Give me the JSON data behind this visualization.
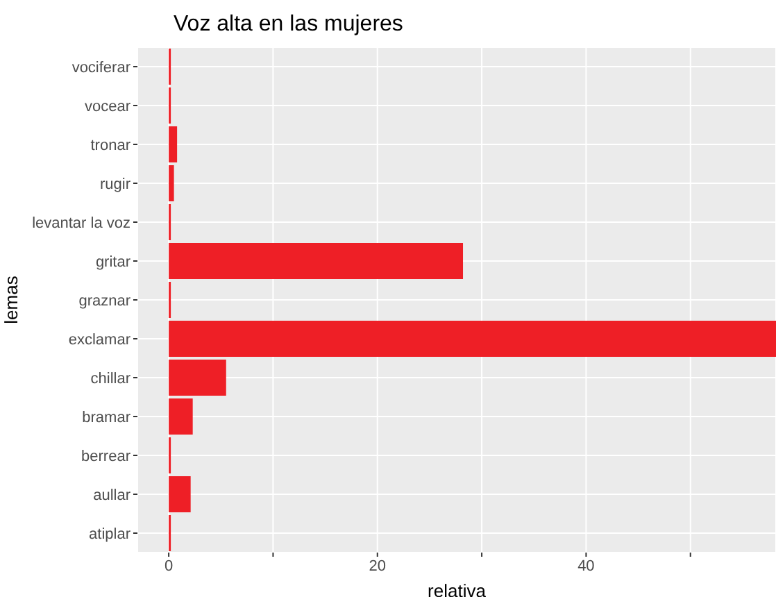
{
  "chart_data": {
    "type": "bar",
    "orientation": "horizontal",
    "title": "Voz alta en las mujeres",
    "xlabel": "relativa",
    "ylabel": "lemas",
    "categories": [
      "vociferar",
      "vocear",
      "tronar",
      "rugir",
      "levantar la voz",
      "gritar",
      "graznar",
      "exclamar",
      "chillar",
      "bramar",
      "berrear",
      "aullar",
      "atiplar"
    ],
    "values": [
      0.2,
      0.2,
      0.8,
      0.5,
      0.2,
      28.2,
      0.2,
      58.2,
      5.5,
      2.3,
      0.2,
      2.1,
      0.2
    ],
    "color": "#ee1f26",
    "xlim": [
      -3,
      58.2
    ],
    "xticks": [
      0,
      {
        "value": 10,
        "label": null
      },
      20,
      {
        "value": 30,
        "label": null
      },
      40,
      {
        "value": 50,
        "label": null
      }
    ],
    "grid": true
  }
}
